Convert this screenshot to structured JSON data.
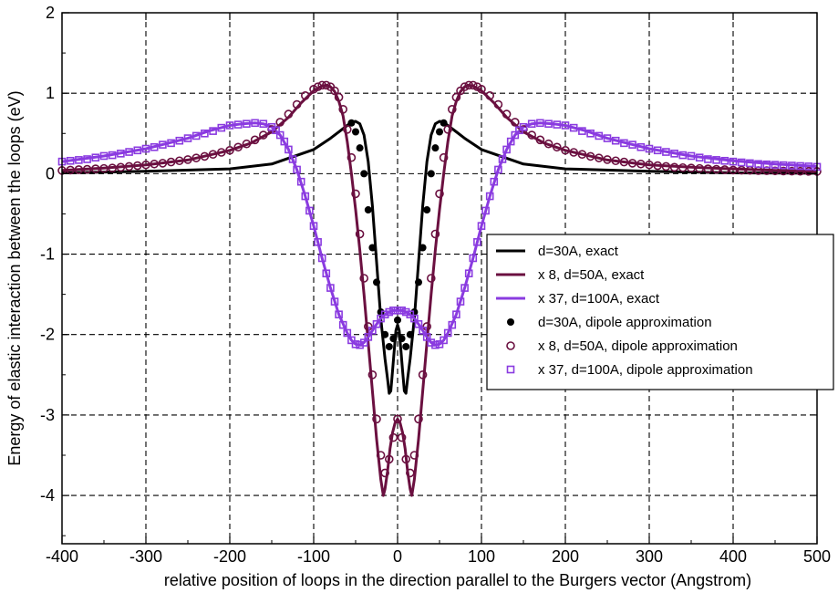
{
  "chart_data": {
    "type": "line",
    "xlabel": "relative position of loops in the direction parallel to the Burgers vector (Angstrom)",
    "ylabel": "Energy of elastic interaction between the loops (eV)",
    "xlim": [
      -400,
      500
    ],
    "ylim": [
      -4.6,
      2
    ],
    "x_ticks": [
      -400,
      -300,
      -200,
      -100,
      0,
      100,
      200,
      300,
      400,
      500
    ],
    "y_ticks": [
      -4,
      -3,
      -2,
      -1,
      0,
      1,
      2
    ],
    "grid": "dashed",
    "legend_placement": "center-right",
    "series": [
      {
        "name": "d=30A, exact",
        "style": "line",
        "color": "#000000",
        "x": [
          -400,
          -300,
          -200,
          -150,
          -100,
          -80,
          -70,
          -60,
          -55,
          -50,
          -45,
          -40,
          -35,
          -30,
          -25,
          -20,
          -15,
          -12,
          -10,
          -8,
          -6,
          -4,
          -2,
          0,
          2,
          4,
          6,
          8,
          10,
          12,
          15,
          20,
          25,
          30,
          35,
          40,
          45,
          50,
          55,
          60,
          70,
          80,
          100,
          150,
          200,
          300,
          400,
          500
        ],
        "y": [
          0.01,
          0.03,
          0.06,
          0.12,
          0.3,
          0.44,
          0.52,
          0.6,
          0.64,
          0.65,
          0.62,
          0.48,
          0.15,
          -0.4,
          -1.1,
          -1.8,
          -2.3,
          -2.55,
          -2.73,
          -2.7,
          -2.45,
          -2.2,
          -1.95,
          -1.88,
          -1.95,
          -2.2,
          -2.45,
          -2.7,
          -2.73,
          -2.55,
          -2.3,
          -1.8,
          -1.1,
          -0.4,
          0.15,
          0.48,
          0.62,
          0.65,
          0.64,
          0.6,
          0.52,
          0.44,
          0.3,
          0.12,
          0.06,
          0.03,
          0.01,
          0.005
        ]
      },
      {
        "name": "x 8, d=50A, exact",
        "style": "line",
        "color": "#6b1040",
        "x": [
          -400,
          -350,
          -300,
          -250,
          -200,
          -175,
          -150,
          -130,
          -115,
          -100,
          -90,
          -85,
          -80,
          -75,
          -70,
          -65,
          -60,
          -55,
          -50,
          -45,
          -40,
          -35,
          -30,
          -25,
          -20,
          -17,
          -15,
          -12,
          -9,
          -6,
          -3,
          0,
          3,
          6,
          9,
          12,
          15,
          17,
          20,
          25,
          30,
          35,
          40,
          45,
          50,
          55,
          60,
          65,
          70,
          75,
          80,
          85,
          90,
          100,
          115,
          130,
          150,
          175,
          200,
          250,
          300,
          350,
          400,
          450,
          500
        ],
        "y": [
          0.04,
          0.07,
          0.11,
          0.17,
          0.29,
          0.38,
          0.52,
          0.7,
          0.88,
          1.03,
          1.09,
          1.1,
          1.08,
          1.02,
          0.9,
          0.72,
          0.4,
          0.0,
          -0.45,
          -0.95,
          -1.5,
          -2.1,
          -2.7,
          -3.3,
          -3.8,
          -4.0,
          -3.92,
          -3.7,
          -3.42,
          -3.22,
          -3.1,
          -3.05,
          -3.1,
          -3.22,
          -3.42,
          -3.7,
          -3.92,
          -4.0,
          -3.8,
          -3.3,
          -2.7,
          -2.1,
          -1.5,
          -0.95,
          -0.45,
          0.0,
          0.4,
          0.72,
          0.9,
          1.02,
          1.08,
          1.1,
          1.09,
          1.03,
          0.88,
          0.7,
          0.52,
          0.38,
          0.29,
          0.17,
          0.11,
          0.08,
          0.06,
          0.04,
          0.03
        ]
      },
      {
        "name": "x 37, d=100A, exact",
        "style": "line",
        "color": "#8a3be0",
        "x": [
          -400,
          -350,
          -300,
          -250,
          -225,
          -200,
          -185,
          -170,
          -160,
          -150,
          -140,
          -130,
          -120,
          -110,
          -100,
          -90,
          -80,
          -70,
          -60,
          -55,
          -50,
          -45,
          -40,
          -35,
          -30,
          -25,
          -20,
          -15,
          -10,
          -5,
          0,
          5,
          10,
          15,
          20,
          25,
          30,
          35,
          40,
          45,
          50,
          55,
          60,
          70,
          80,
          90,
          100,
          110,
          120,
          130,
          140,
          150,
          160,
          170,
          185,
          200,
          225,
          250,
          300,
          350,
          400,
          450,
          500
        ],
        "y": [
          0.15,
          0.22,
          0.31,
          0.44,
          0.53,
          0.6,
          0.62,
          0.63,
          0.62,
          0.58,
          0.48,
          0.3,
          0.05,
          -0.28,
          -0.65,
          -1.05,
          -1.42,
          -1.75,
          -1.98,
          -2.07,
          -2.12,
          -2.13,
          -2.1,
          -2.03,
          -1.95,
          -1.87,
          -1.8,
          -1.75,
          -1.72,
          -1.7,
          -1.7,
          -1.7,
          -1.72,
          -1.75,
          -1.8,
          -1.87,
          -1.95,
          -2.03,
          -2.1,
          -2.13,
          -2.12,
          -2.07,
          -1.98,
          -1.75,
          -1.42,
          -1.05,
          -0.65,
          -0.28,
          0.05,
          0.3,
          0.48,
          0.58,
          0.62,
          0.63,
          0.62,
          0.6,
          0.53,
          0.44,
          0.31,
          0.22,
          0.16,
          0.12,
          0.09
        ]
      },
      {
        "name": "d=30A, dipole approximation",
        "style": "filled-circle",
        "color": "#000000",
        "x": [
          -55,
          -50,
          -45,
          -40,
          -35,
          -30,
          -25,
          -20,
          -15,
          -10,
          -5,
          0,
          5,
          10,
          15,
          20,
          25,
          30,
          35,
          40,
          45,
          50,
          55
        ],
        "y": [
          0.63,
          0.52,
          0.32,
          0.0,
          -0.45,
          -0.92,
          -1.35,
          -1.72,
          -2.0,
          -2.15,
          -2.05,
          -1.82,
          -2.05,
          -2.15,
          -2.0,
          -1.72,
          -1.35,
          -0.92,
          -0.45,
          0.0,
          0.32,
          0.52,
          0.63
        ]
      },
      {
        "name": "x 8, d=50A, dipole approximation",
        "style": "open-circle",
        "color": "#6b1040",
        "x": [
          -400,
          -390,
          -380,
          -370,
          -360,
          -350,
          -340,
          -330,
          -320,
          -310,
          -300,
          -290,
          -280,
          -270,
          -260,
          -250,
          -240,
          -230,
          -220,
          -210,
          -200,
          -190,
          -180,
          -170,
          -160,
          -150,
          -140,
          -130,
          -120,
          -110,
          -100,
          -95,
          -90,
          -85,
          -80,
          -75,
          -70,
          -65,
          -60,
          -55,
          -50,
          -45,
          -40,
          -35,
          -30,
          -25,
          -20,
          -15,
          -10,
          -5,
          0,
          5,
          10,
          15,
          20,
          25,
          30,
          35,
          40,
          45,
          50,
          55,
          60,
          65,
          70,
          75,
          80,
          85,
          90,
          95,
          100,
          110,
          120,
          130,
          140,
          150,
          160,
          170,
          180,
          190,
          200,
          210,
          220,
          230,
          240,
          250,
          260,
          270,
          280,
          290,
          300,
          310,
          320,
          330,
          340,
          350,
          360,
          370,
          380,
          390,
          400,
          410,
          420,
          430,
          440,
          450,
          460,
          470,
          480,
          490,
          500
        ],
        "y": [
          0.04,
          0.045,
          0.05,
          0.055,
          0.06,
          0.065,
          0.07,
          0.08,
          0.09,
          0.1,
          0.11,
          0.12,
          0.13,
          0.145,
          0.16,
          0.175,
          0.195,
          0.215,
          0.24,
          0.265,
          0.29,
          0.33,
          0.37,
          0.42,
          0.48,
          0.55,
          0.64,
          0.74,
          0.86,
          0.97,
          1.05,
          1.08,
          1.1,
          1.1,
          1.08,
          1.03,
          0.95,
          0.8,
          0.55,
          0.2,
          -0.25,
          -0.75,
          -1.3,
          -1.9,
          -2.5,
          -3.05,
          -3.5,
          -3.72,
          -3.55,
          -3.28,
          -3.05,
          -3.28,
          -3.55,
          -3.72,
          -3.5,
          -3.05,
          -2.5,
          -1.9,
          -1.3,
          -0.75,
          -0.25,
          0.2,
          0.55,
          0.8,
          0.95,
          1.03,
          1.08,
          1.1,
          1.1,
          1.08,
          1.05,
          0.97,
          0.86,
          0.74,
          0.64,
          0.55,
          0.48,
          0.42,
          0.37,
          0.33,
          0.29,
          0.265,
          0.24,
          0.215,
          0.195,
          0.175,
          0.16,
          0.145,
          0.13,
          0.12,
          0.11,
          0.1,
          0.09,
          0.08,
          0.075,
          0.07,
          0.065,
          0.06,
          0.055,
          0.05,
          0.045,
          0.043,
          0.041,
          0.039,
          0.037,
          0.035,
          0.033,
          0.031,
          0.03,
          0.029,
          0.028
        ]
      },
      {
        "name": "x 37, d=100A, dipole approximation",
        "style": "open-square",
        "color": "#8a3be0",
        "x": [
          -400,
          -390,
          -380,
          -370,
          -360,
          -350,
          -340,
          -330,
          -320,
          -310,
          -300,
          -290,
          -280,
          -270,
          -260,
          -250,
          -240,
          -230,
          -220,
          -210,
          -200,
          -190,
          -180,
          -170,
          -160,
          -150,
          -145,
          -140,
          -135,
          -130,
          -125,
          -120,
          -115,
          -110,
          -105,
          -100,
          -95,
          -90,
          -85,
          -80,
          -75,
          -70,
          -65,
          -60,
          -55,
          -50,
          -45,
          -40,
          -35,
          -30,
          -25,
          -20,
          -15,
          -10,
          -5,
          0,
          5,
          10,
          15,
          20,
          25,
          30,
          35,
          40,
          45,
          50,
          55,
          60,
          65,
          70,
          75,
          80,
          85,
          90,
          95,
          100,
          105,
          110,
          115,
          120,
          125,
          130,
          135,
          140,
          145,
          150,
          160,
          170,
          180,
          190,
          200,
          210,
          220,
          230,
          240,
          250,
          260,
          270,
          280,
          290,
          300,
          310,
          320,
          330,
          340,
          350,
          360,
          370,
          380,
          390,
          400,
          410,
          420,
          430,
          440,
          450,
          460,
          470,
          480,
          490,
          500
        ],
        "y": [
          0.15,
          0.16,
          0.17,
          0.18,
          0.2,
          0.22,
          0.23,
          0.25,
          0.27,
          0.29,
          0.31,
          0.33,
          0.36,
          0.38,
          0.41,
          0.44,
          0.47,
          0.5,
          0.53,
          0.57,
          0.6,
          0.61,
          0.62,
          0.63,
          0.62,
          0.58,
          0.54,
          0.48,
          0.4,
          0.3,
          0.18,
          0.05,
          -0.1,
          -0.28,
          -0.46,
          -0.65,
          -0.85,
          -1.05,
          -1.24,
          -1.42,
          -1.59,
          -1.75,
          -1.88,
          -1.98,
          -2.07,
          -2.12,
          -2.13,
          -2.1,
          -2.03,
          -1.95,
          -1.87,
          -1.8,
          -1.75,
          -1.72,
          -1.7,
          -1.7,
          -1.7,
          -1.72,
          -1.75,
          -1.8,
          -1.87,
          -1.95,
          -2.03,
          -2.1,
          -2.13,
          -2.12,
          -2.07,
          -1.98,
          -1.88,
          -1.75,
          -1.59,
          -1.42,
          -1.24,
          -1.05,
          -0.85,
          -0.65,
          -0.46,
          -0.28,
          -0.1,
          0.05,
          0.18,
          0.3,
          0.4,
          0.48,
          0.54,
          0.58,
          0.62,
          0.63,
          0.62,
          0.61,
          0.6,
          0.57,
          0.53,
          0.5,
          0.47,
          0.44,
          0.41,
          0.38,
          0.36,
          0.33,
          0.31,
          0.29,
          0.27,
          0.25,
          0.23,
          0.22,
          0.2,
          0.18,
          0.17,
          0.16,
          0.15,
          0.14,
          0.13,
          0.12,
          0.115,
          0.11,
          0.105,
          0.1,
          0.095,
          0.09,
          0.085
        ]
      }
    ]
  }
}
